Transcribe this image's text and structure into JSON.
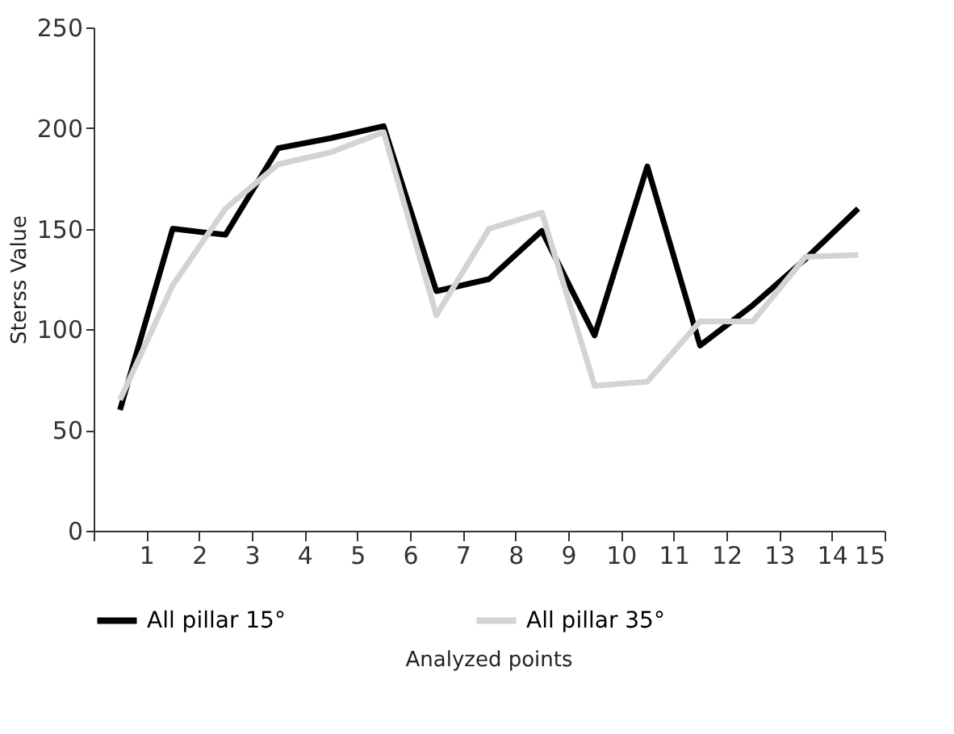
{
  "chart_data": {
    "type": "line",
    "xlabel": "Analyzed points",
    "ylabel": "Sterss Value",
    "x": [
      0.5,
      1.5,
      2.5,
      3.5,
      4.5,
      5.5,
      6.5,
      7.5,
      8.5,
      9.5,
      10.5,
      11.5,
      12.5,
      13.5,
      14.5
    ],
    "xlim": [
      0,
      15
    ],
    "xticks": [
      {
        "value": 0,
        "label": null
      },
      1,
      2,
      3,
      4,
      5,
      6,
      7,
      8,
      9,
      10,
      11,
      12,
      13,
      14,
      15
    ],
    "ylim": [
      0,
      250
    ],
    "yticks": [
      0,
      50,
      100,
      150,
      200,
      250
    ],
    "series": [
      {
        "name": "All pillar 15°",
        "color": "#000000",
        "values": [
          60,
          150,
          147,
          190,
          195,
          201,
          119,
          125,
          149,
          97,
          181,
          92,
          112,
          135,
          160
        ]
      },
      {
        "name": "All pillar 35°",
        "color": "#d3d3d3",
        "values": [
          65,
          122,
          160,
          182,
          188,
          198,
          107,
          150,
          158,
          72,
          74,
          104,
          104,
          136,
          137
        ]
      }
    ],
    "grid": false,
    "legend": "bottom",
    "line_style": "solid",
    "marker": "none"
  }
}
